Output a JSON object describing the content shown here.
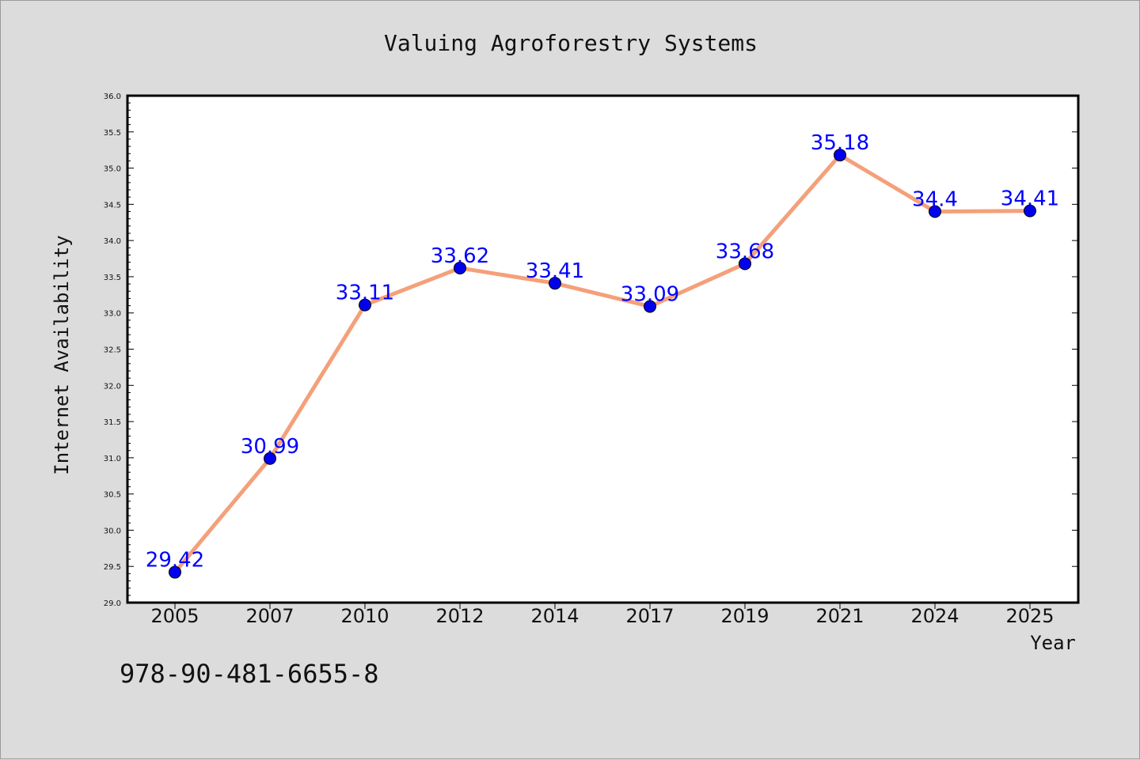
{
  "chart_data": {
    "type": "line",
    "title": "Valuing Agroforestry Systems",
    "xlabel": "Year",
    "ylabel": "Internet Availability",
    "categories": [
      "2005",
      "2007",
      "2010",
      "2012",
      "2014",
      "2017",
      "2019",
      "2021",
      "2024",
      "2025"
    ],
    "series": [
      {
        "values": [
          29.42,
          30.99,
          33.11,
          33.62,
          33.41,
          33.09,
          33.68,
          35.18,
          34.4,
          34.41
        ]
      }
    ],
    "data_labels": [
      "29.42",
      "30.99",
      "33.11",
      "33.62",
      "33.41",
      "33.09",
      "33.68",
      "35.18",
      "34.4",
      "34.41"
    ],
    "ylim": [
      29.0,
      36.0
    ],
    "yticks": [
      "29.0",
      "29.5",
      "30.0",
      "30.5",
      "31.0",
      "31.5",
      "32.0",
      "32.5",
      "33.0",
      "33.5",
      "34.0",
      "34.5",
      "35.0",
      "35.5",
      "36.0"
    ],
    "grid": false,
    "colors": {
      "line": "#f4a07a",
      "marker": "#0000ee",
      "label": "#0000ff",
      "plot_background": "#ffffff",
      "figure_background": "#dcdcdc"
    }
  },
  "footer": {
    "code": "978-90-481-6655-8"
  }
}
